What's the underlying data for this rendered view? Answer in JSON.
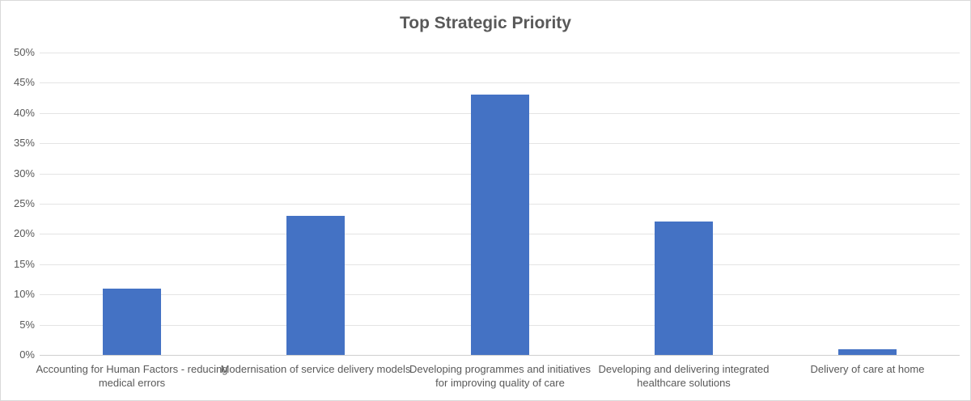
{
  "chart_data": {
    "type": "bar",
    "title": "Top Strategic Priority",
    "categories": [
      "Accounting for Human Factors - reducing medical errors",
      "Modernisation of service delivery models",
      "Developing programmes and initiatives for improving quality of care",
      "Developing and delivering integrated healthcare solutions",
      "Delivery of care at home"
    ],
    "values": [
      11,
      23,
      43,
      22,
      1
    ],
    "unit": "%",
    "xlabel": "",
    "ylabel": "",
    "ylim": [
      0,
      50
    ],
    "ytick_step": 5,
    "ytick_labels": [
      "0%",
      "5%",
      "10%",
      "15%",
      "20%",
      "25%",
      "30%",
      "35%",
      "40%",
      "45%",
      "50%"
    ],
    "grid": true,
    "legend": "none",
    "bar_color": "#4472C4",
    "gridline_color": "#E4E4E4",
    "axis_line_color": "#CFCFCF",
    "text_color": "#595959",
    "title_color": "#595959"
  }
}
